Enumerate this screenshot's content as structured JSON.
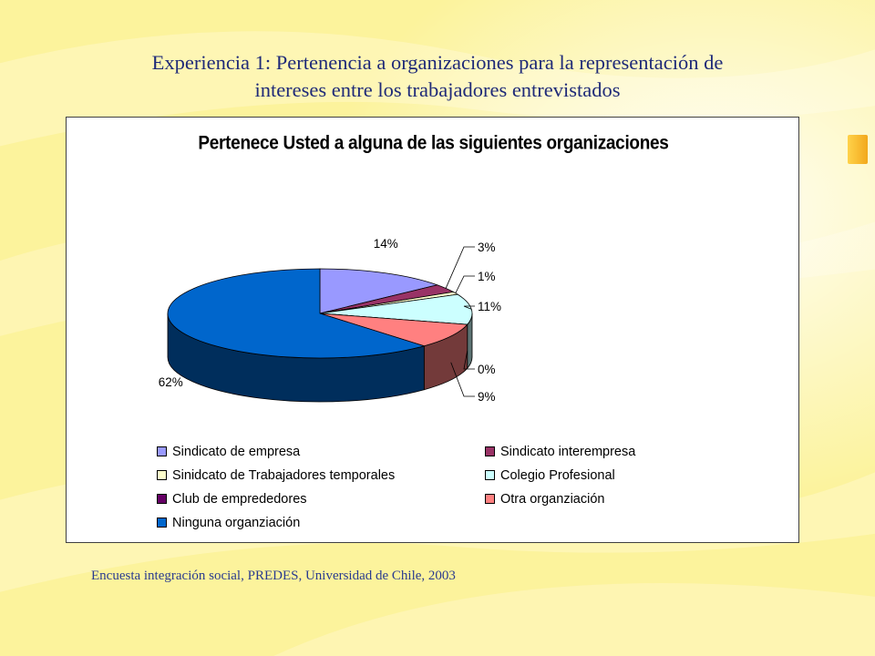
{
  "slide": {
    "title_line1": "Experiencia 1: Pertenencia a organizaciones para la representación de",
    "title_line2": "intereses entre los trabajadores entrevistados",
    "source": "Encuesta integración social, PREDES, Universidad de Chile, 2003",
    "background_color": "#fdf5a8"
  },
  "chart_data": {
    "type": "pie",
    "style": "3d",
    "title": "Pertenece Usted a alguna de las siguientes organizaciones",
    "legend_position": "bottom",
    "slices": [
      {
        "label": "Sindicato de empresa",
        "value": 14,
        "pct_label": "14%",
        "color": "#9999ff"
      },
      {
        "label": "Sindicato interempresa",
        "value": 3,
        "pct_label": "3%",
        "color": "#993366"
      },
      {
        "label": "Sinidcato de Trabajadores temporales",
        "value": 1,
        "pct_label": "1%",
        "color": "#ffffcc"
      },
      {
        "label": "Colegio Profesional",
        "value": 11,
        "pct_label": "11%",
        "color": "#ccffff"
      },
      {
        "label": "Club de emprededores",
        "value": 0,
        "pct_label": "0%",
        "color": "#660066"
      },
      {
        "label": "Otra organziación",
        "value": 9,
        "pct_label": "9%",
        "color": "#ff8080"
      },
      {
        "label": "Ninguna organziación",
        "value": 62,
        "pct_label": "62%",
        "color": "#0066cc"
      }
    ]
  }
}
